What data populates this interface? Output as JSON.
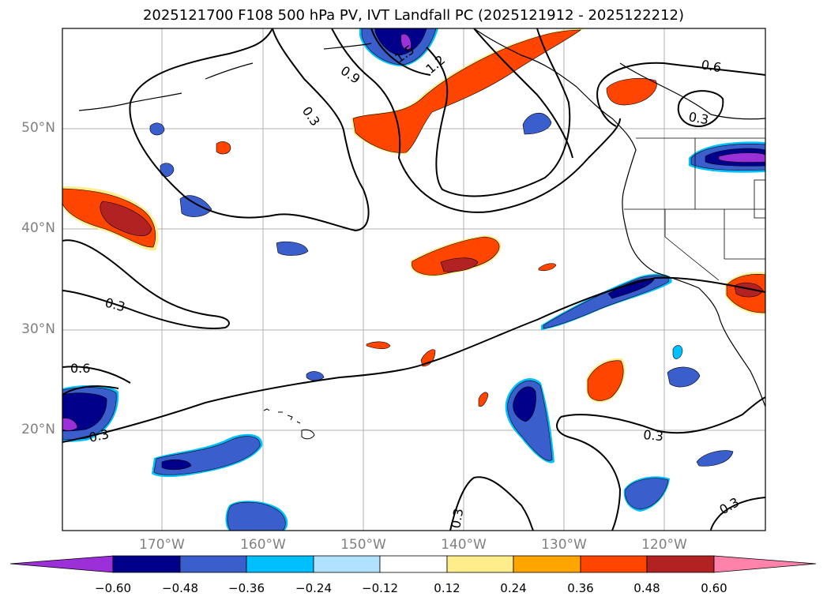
{
  "title": "2025121700 F108 500 hPa PV, IVT Landfall PC (2025121912 - 2025122212)",
  "map": {
    "region": "North Pacific / US West Coast",
    "lat_ticks": [
      "50°N",
      "40°N",
      "30°N",
      "20°N"
    ],
    "lon_ticks": [
      "170°W",
      "160°W",
      "150°W",
      "140°W",
      "130°W",
      "120°W"
    ],
    "contour_labels": [
      "1.5",
      "1.2",
      "0.9",
      "0.3",
      "0.6",
      "0.3",
      "0.3",
      "0.6",
      "0.3",
      "0.3",
      "0.3",
      "0.3"
    ]
  },
  "colorbar": {
    "tick_labels": [
      "−0.60",
      "−0.48",
      "−0.36",
      "−0.24",
      "−0.12",
      "0.12",
      "0.24",
      "0.36",
      "0.48",
      "0.60"
    ],
    "colors": [
      "#9b30d9",
      "#00008b",
      "#3a5fcd",
      "#00bfff",
      "#b0e2ff",
      "#ffffff",
      "#ffec8b",
      "#ffa500",
      "#ff4500",
      "#b22222",
      "#ff82ab"
    ]
  },
  "fill_colors": {
    "neg_outer": "#00bfff",
    "neg_mid": "#3a5fcd",
    "neg_inner": "#00008b",
    "neg_core": "#9b30d9",
    "pos_outer": "#ffec8b",
    "pos_mid": "#ff4500",
    "pos_inner": "#b22222"
  }
}
